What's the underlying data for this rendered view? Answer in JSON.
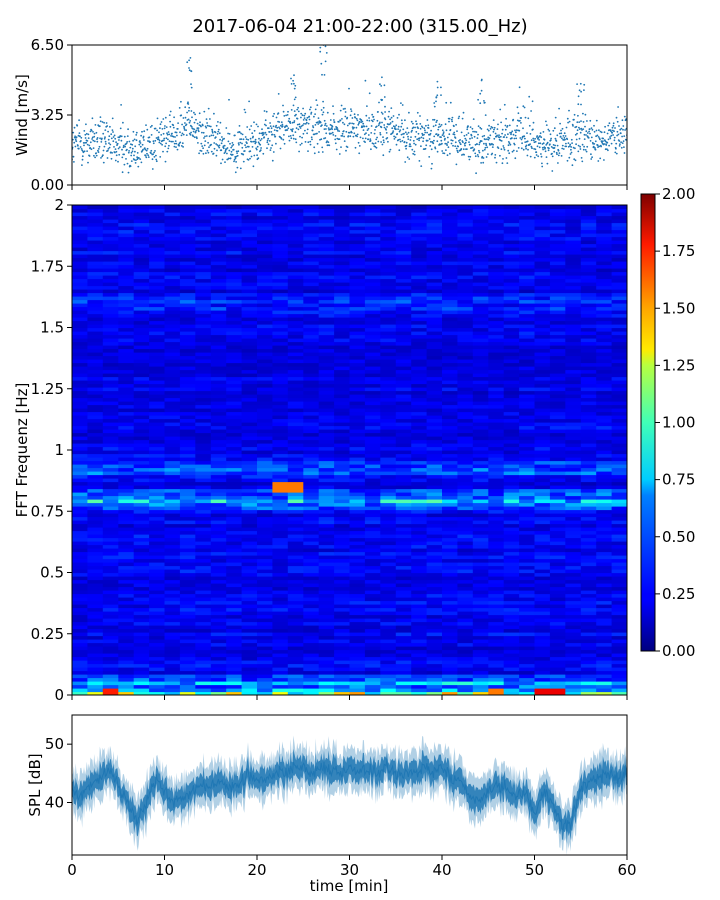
{
  "figure": {
    "title": "2017-06-04 21:00-22:00 (315.00_Hz)"
  },
  "chart_data": [
    {
      "type": "scatter",
      "panel": "wind",
      "ylabel": "Wind [m/s]",
      "xlim": [
        0,
        60
      ],
      "ylim": [
        0.0,
        6.5
      ],
      "yticks": [
        "0.00",
        "3.25",
        "6.50"
      ],
      "x_tick_labels_shown": false,
      "color": "#1f77b4",
      "profile_x": [
        0,
        2,
        4,
        6,
        8,
        10,
        11.5,
        12.5,
        14,
        16,
        18,
        20,
        22,
        24,
        26,
        28,
        30,
        32,
        34,
        36,
        38,
        40,
        42,
        44,
        46,
        48,
        50,
        52,
        54,
        56,
        58,
        60
      ],
      "profile_mean": [
        1.9,
        2.0,
        1.9,
        1.6,
        1.8,
        2.2,
        2.5,
        3.0,
        2.3,
        2.0,
        1.7,
        2.0,
        2.5,
        2.8,
        2.6,
        2.5,
        2.6,
        2.7,
        2.6,
        2.3,
        2.2,
        2.3,
        2.1,
        2.0,
        2.1,
        2.3,
        2.0,
        1.8,
        2.1,
        2.2,
        2.1,
        2.3
      ],
      "typical_spread": 0.7,
      "peaks": [
        {
          "x": 12.8,
          "y": 5.9
        },
        {
          "x": 24.0,
          "y": 5.1
        },
        {
          "x": 27.2,
          "y": 6.5
        },
        {
          "x": 33.5,
          "y": 5.0
        },
        {
          "x": 39.5,
          "y": 4.8
        },
        {
          "x": 44.3,
          "y": 4.9
        },
        {
          "x": 55.0,
          "y": 4.7
        }
      ]
    },
    {
      "type": "heatmap",
      "panel": "spectrogram",
      "ylabel": "FFT Frequenz [Hz]",
      "xlim": [
        0,
        60
      ],
      "ylim": [
        0,
        2
      ],
      "yticks": [
        "0",
        "0.25",
        "0.5",
        "0.75",
        "1",
        "1.25",
        "1.5",
        "1.75",
        "2"
      ],
      "x_tick_labels_shown": false,
      "colormap": "jet",
      "colorbar": {
        "vmin": 0.0,
        "vmax": 2.0,
        "ticks": [
          "0.00",
          "0.25",
          "0.50",
          "0.75",
          "1.00",
          "1.25",
          "1.50",
          "1.75",
          "2.00"
        ]
      },
      "background_level": 0.18,
      "bands": [
        {
          "freq": 0.0,
          "level": 1.05
        },
        {
          "freq": 0.05,
          "level": 0.6
        },
        {
          "freq": 0.8,
          "level": 0.6
        },
        {
          "freq": 0.93,
          "level": 0.45
        },
        {
          "freq": 1.6,
          "level": 0.35
        }
      ],
      "hotspots": [
        {
          "time": 4.0,
          "freq": 0.01,
          "level": 1.8
        },
        {
          "time": 23.0,
          "freq": 0.85,
          "level": 1.6
        },
        {
          "time": 46.0,
          "freq": 0.01,
          "level": 1.6
        },
        {
          "time": 52.0,
          "freq": 0.01,
          "level": 1.9
        }
      ]
    },
    {
      "type": "line",
      "panel": "spl",
      "ylabel": "SPL [dB]",
      "xlabel": "time [min]",
      "xlim": [
        0,
        60
      ],
      "ylim": [
        31,
        55
      ],
      "yticks": [
        "40",
        "50"
      ],
      "xticks": [
        "0",
        "10",
        "20",
        "30",
        "40",
        "50",
        "60"
      ],
      "color": "#1f77b4",
      "x": [
        0,
        1,
        2,
        3,
        4,
        5,
        6,
        7,
        8,
        9,
        10,
        11,
        12,
        13,
        14,
        15,
        16,
        17,
        18,
        19,
        20,
        21,
        22,
        23,
        24,
        25,
        26,
        27,
        28,
        29,
        30,
        31,
        32,
        33,
        34,
        35,
        36,
        37,
        38,
        39,
        40,
        41,
        42,
        43,
        44,
        45,
        46,
        47,
        48,
        49,
        50,
        51,
        52,
        53,
        54,
        55,
        56,
        57,
        58,
        59,
        60
      ],
      "y": [
        42,
        41,
        43,
        44,
        46,
        43,
        40,
        37,
        40,
        44,
        42,
        40,
        41,
        42,
        43,
        43,
        44,
        42,
        43,
        45,
        44,
        44,
        45,
        45,
        46,
        46,
        45,
        46,
        46,
        45,
        46,
        45,
        46,
        45,
        46,
        45,
        45,
        45,
        46,
        45,
        46,
        44,
        44,
        41,
        40,
        42,
        43,
        42,
        41,
        42,
        38,
        42,
        40,
        36,
        37,
        42,
        44,
        44,
        45,
        44,
        45
      ],
      "band_halfwidth": 3.5
    }
  ]
}
